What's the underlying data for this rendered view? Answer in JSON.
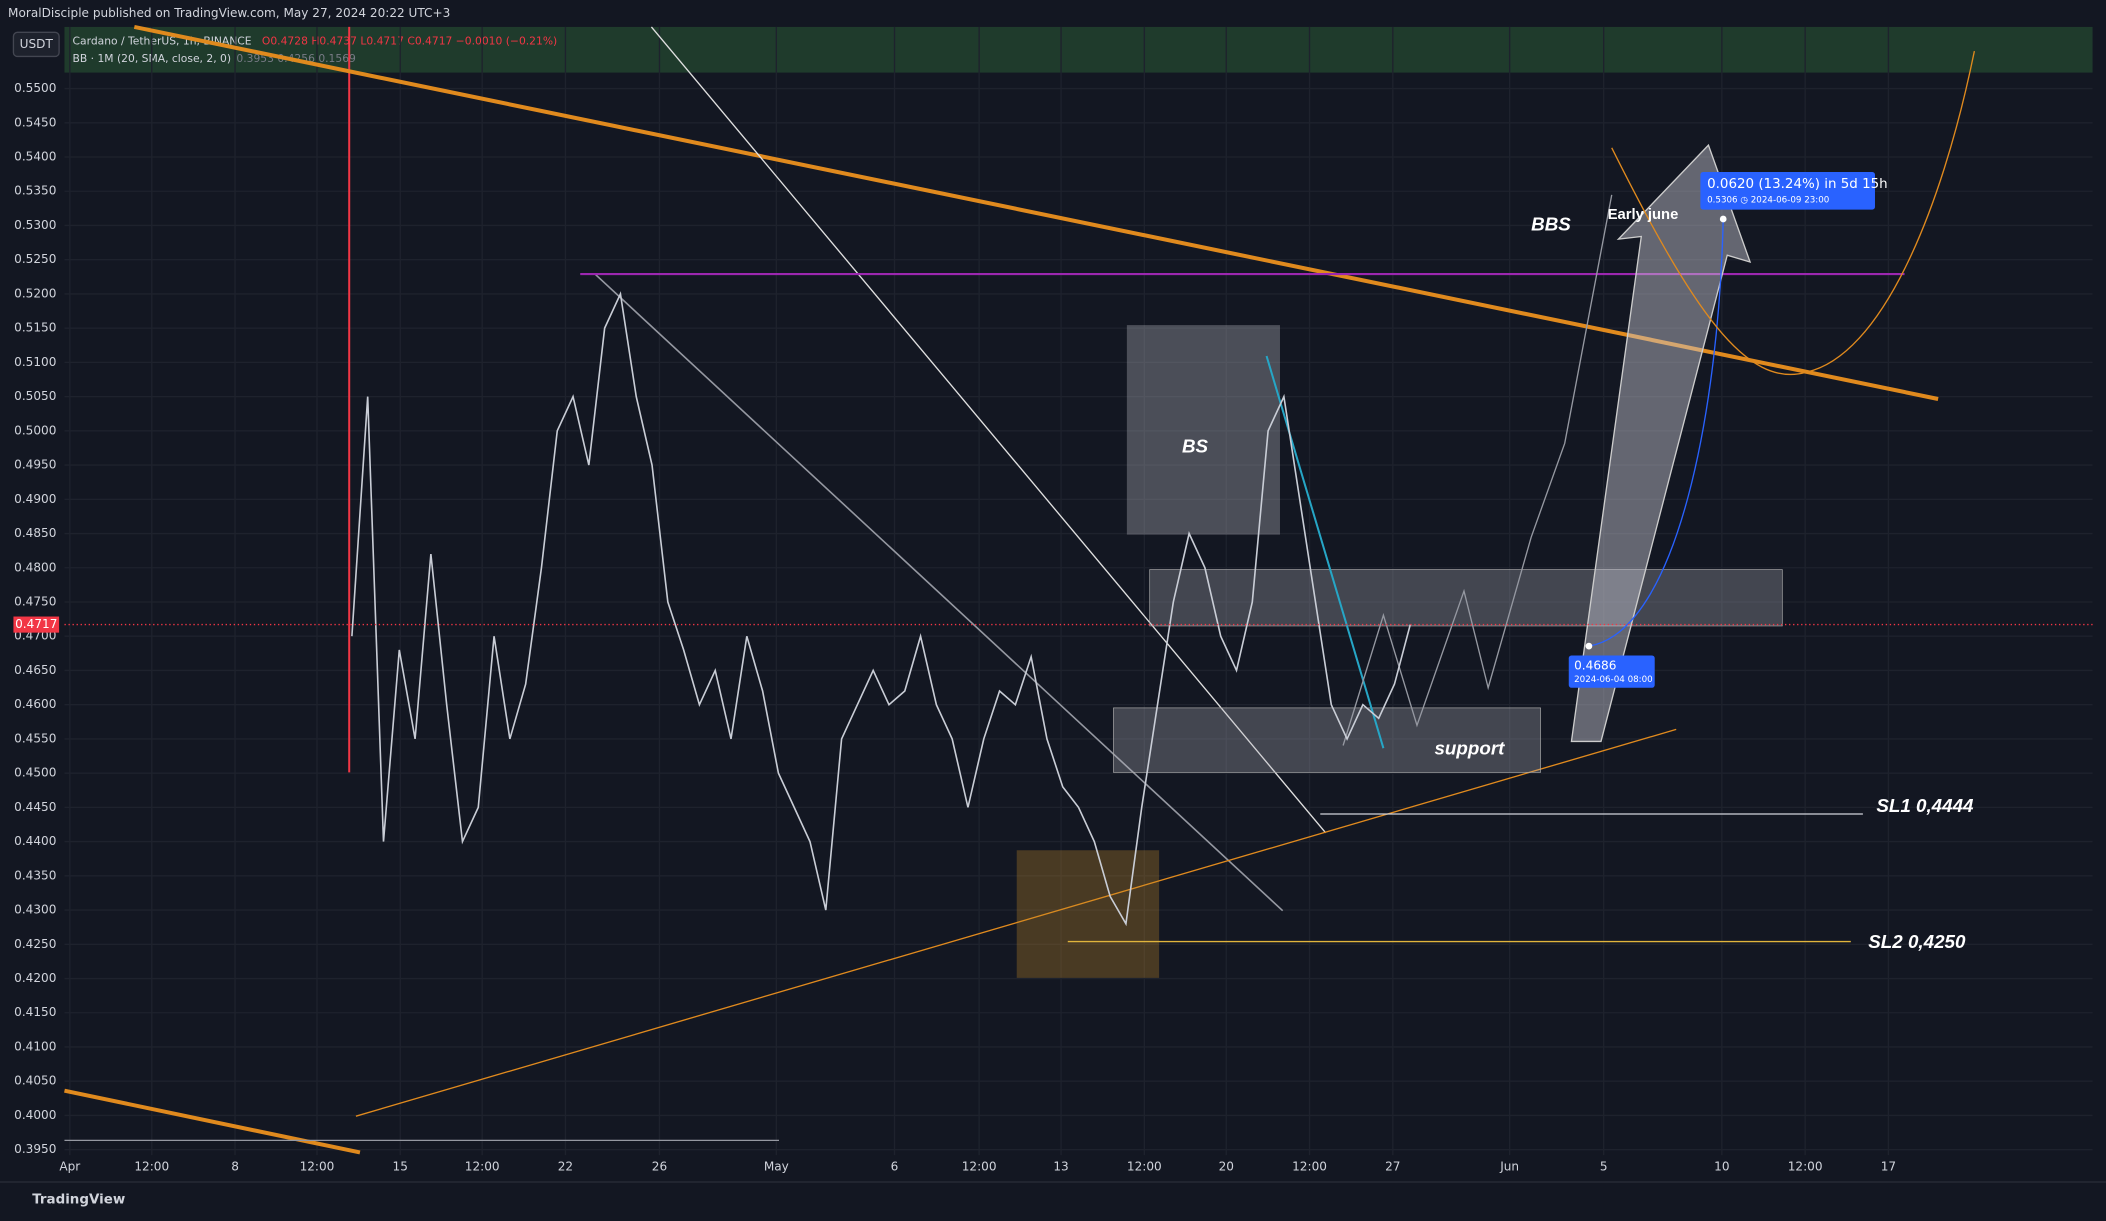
{
  "header": {
    "publisher": "MoralDisciple published on TradingView.com, May 27, 2024 20:22 UTC+3",
    "currency": "USDT",
    "symbol": "Cardano / TetherUS, 1h, BINANCE",
    "ohlc": "O0.4728  H0.4737  L0.4717  C0.4717  −0.0010 (−0.21%)",
    "indicator": "BB · 1M (20, SMA, close, 2, 0)",
    "indicator_values": "0.3953  0.4256  0.1569",
    "footer": "TradingView"
  },
  "chart_data": {
    "type": "line",
    "color": "#c9cdd6",
    "values": [
      0.47,
      0.505,
      0.44,
      0.468,
      0.455,
      0.482,
      0.46,
      0.44,
      0.445,
      0.47,
      0.455,
      0.463,
      0.48,
      0.5,
      0.505,
      0.495,
      0.515,
      0.52,
      0.505,
      0.495,
      0.475,
      0.468,
      0.46,
      0.465,
      0.455,
      0.47,
      0.462,
      0.45,
      0.445,
      0.44,
      0.43,
      0.455,
      0.46,
      0.465,
      0.46,
      0.462,
      0.47,
      0.46,
      0.455,
      0.445,
      0.455,
      0.462,
      0.46,
      0.467,
      0.455,
      0.448,
      0.445,
      0.44,
      0.432,
      0.428,
      0.445,
      0.46,
      0.475,
      0.485,
      0.48,
      0.47,
      0.465,
      0.475,
      0.5,
      0.505,
      0.49,
      0.475,
      0.46,
      0.455,
      0.46,
      0.458,
      0.463,
      0.4717
    ],
    "xticks": [
      "Apr",
      "12:00",
      "8",
      "12:00",
      "15",
      "12:00",
      "22",
      "26",
      "May",
      "6",
      "12:00",
      "13",
      "12:00",
      "20",
      "12:00",
      "27",
      "Jun",
      "5",
      "10",
      "12:00",
      "17"
    ],
    "ylim": [
      0.3942,
      0.559
    ],
    "yticks": [
      {
        "value": 0.395,
        "label": "0.3950"
      },
      {
        "value": 0.4,
        "label": "0.4000"
      },
      {
        "value": 0.405,
        "label": "0.4050"
      },
      {
        "value": 0.41,
        "label": "0.4100"
      },
      {
        "value": 0.415,
        "label": "0.4150"
      },
      {
        "value": 0.42,
        "label": "0.4200"
      },
      {
        "value": 0.425,
        "label": "0.4250"
      },
      {
        "value": 0.43,
        "label": "0.4300"
      },
      {
        "value": 0.435,
        "label": "0.4350"
      },
      {
        "value": 0.44,
        "label": "0.4400"
      },
      {
        "value": 0.445,
        "label": "0.4450"
      },
      {
        "value": 0.45,
        "label": "0.4500"
      },
      {
        "value": 0.455,
        "label": "0.4550"
      },
      {
        "value": 0.46,
        "label": "0.4600"
      },
      {
        "value": 0.465,
        "label": "0.4650"
      },
      {
        "value": 0.47,
        "label": "0.4700"
      },
      {
        "value": 0.475,
        "label": "0.4750"
      },
      {
        "value": 0.48,
        "label": "0.4800"
      },
      {
        "value": 0.485,
        "label": "0.4850"
      },
      {
        "value": 0.49,
        "label": "0.4900"
      },
      {
        "value": 0.495,
        "label": "0.4950"
      },
      {
        "value": 0.5,
        "label": "0.5000"
      },
      {
        "value": 0.505,
        "label": "0.5050"
      },
      {
        "value": 0.51,
        "label": "0.5100"
      },
      {
        "value": 0.515,
        "label": "0.5150"
      },
      {
        "value": 0.52,
        "label": "0.5200"
      },
      {
        "value": 0.525,
        "label": "0.5250"
      },
      {
        "value": 0.53,
        "label": "0.5300"
      },
      {
        "value": 0.535,
        "label": "0.5350"
      },
      {
        "value": 0.54,
        "label": "0.5400"
      },
      {
        "value": 0.545,
        "label": "0.5450"
      },
      {
        "value": 0.55,
        "label": "0.5500"
      }
    ],
    "current_price": {
      "value": 0.4717,
      "label": "0.4717"
    },
    "annotations": {
      "bs": "BS",
      "bbs": "BBS",
      "early": "Early june",
      "support": "support",
      "sl1": "SL1 0,4444",
      "sl2": "SL2 0,4250",
      "point_price": "0.4686",
      "point_date": "2024-06-04 08:00",
      "target": "0.0620 (13.24%) in 5d 15h",
      "target_detail": "0.5306 ◷ 2024-06-09  23:00"
    }
  }
}
